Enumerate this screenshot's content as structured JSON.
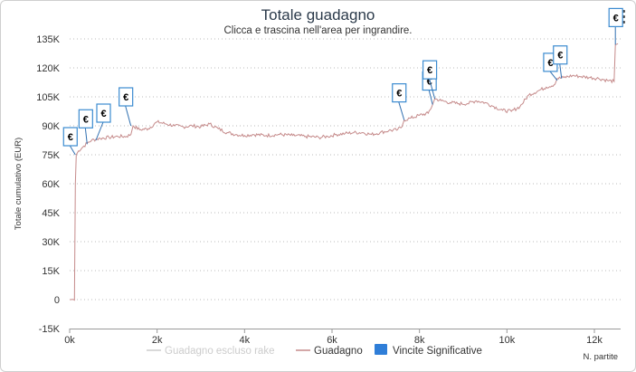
{
  "header": {
    "title": "Totale guadagno",
    "subtitle": "Clicca e trascina nell'area per ingrandire.",
    "menu_icon": "hamburger-menu-icon"
  },
  "colors": {
    "guadagno": "#c58a8a",
    "escluso_rake": "#cccccc",
    "vincite": "#2f7ed8",
    "grid": "#bbbbbb"
  },
  "chart_data": {
    "type": "line",
    "title": "Totale guadagno",
    "subtitle": "Clicca e trascina nell'area per ingrandire.",
    "xlabel": "N. partite",
    "ylabel": "Totale cumulativo (EUR)",
    "xlim": [
      0,
      12600
    ],
    "ylim": [
      -15000,
      135000
    ],
    "x_ticks": [
      0,
      2000,
      4000,
      6000,
      8000,
      10000,
      12000
    ],
    "x_tick_labels": [
      "0k",
      "2k",
      "4k",
      "6k",
      "8k",
      "10k",
      "12k"
    ],
    "y_ticks": [
      -15000,
      0,
      15000,
      30000,
      45000,
      60000,
      75000,
      90000,
      105000,
      120000,
      135000
    ],
    "y_tick_labels": [
      "-15K",
      "0",
      "15K",
      "30K",
      "45K",
      "60K",
      "75K",
      "90K",
      "105K",
      "120K",
      "135K"
    ],
    "grid": "horizontal dotted",
    "legend_position": "bottom-center",
    "legend": [
      "Guadagno escluso rake",
      "Guadagno",
      "Vincite Significative"
    ],
    "series": [
      {
        "name": "Guadagno",
        "points": [
          [
            0,
            0
          ],
          [
            90,
            0
          ],
          [
            110,
            -300
          ],
          [
            130,
            60000
          ],
          [
            150,
            75000
          ],
          [
            200,
            77000
          ],
          [
            300,
            79000
          ],
          [
            400,
            81000
          ],
          [
            500,
            82500
          ],
          [
            600,
            83000
          ],
          [
            700,
            83500
          ],
          [
            900,
            84000
          ],
          [
            1100,
            84500
          ],
          [
            1300,
            84500
          ],
          [
            1400,
            85500
          ],
          [
            1450,
            90000
          ],
          [
            1600,
            88000
          ],
          [
            1800,
            88500
          ],
          [
            2000,
            92000
          ],
          [
            2200,
            91000
          ],
          [
            2400,
            90000
          ],
          [
            2600,
            89500
          ],
          [
            2800,
            90000
          ],
          [
            3000,
            89500
          ],
          [
            3200,
            91000
          ],
          [
            3400,
            88500
          ],
          [
            3600,
            86500
          ],
          [
            3800,
            85500
          ],
          [
            4000,
            85000
          ],
          [
            4200,
            85500
          ],
          [
            4500,
            85000
          ],
          [
            4800,
            85500
          ],
          [
            5100,
            85000
          ],
          [
            5400,
            84500
          ],
          [
            5700,
            84000
          ],
          [
            5900,
            84500
          ],
          [
            6100,
            85500
          ],
          [
            6300,
            86000
          ],
          [
            6500,
            86500
          ],
          [
            6700,
            86500
          ],
          [
            6900,
            85500
          ],
          [
            7100,
            86500
          ],
          [
            7300,
            87500
          ],
          [
            7500,
            88000
          ],
          [
            7600,
            89500
          ],
          [
            7650,
            93000
          ],
          [
            7800,
            94000
          ],
          [
            8000,
            95500
          ],
          [
            8200,
            96500
          ],
          [
            8300,
            101000
          ],
          [
            8350,
            104000
          ],
          [
            8500,
            103000
          ],
          [
            8700,
            102000
          ],
          [
            8900,
            101500
          ],
          [
            9100,
            101500
          ],
          [
            9300,
            103000
          ],
          [
            9500,
            102000
          ],
          [
            9700,
            100000
          ],
          [
            9900,
            98000
          ],
          [
            10100,
            97500
          ],
          [
            10300,
            100000
          ],
          [
            10500,
            106000
          ],
          [
            10700,
            108000
          ],
          [
            10900,
            110000
          ],
          [
            11100,
            111500
          ],
          [
            11150,
            114500
          ],
          [
            11300,
            115000
          ],
          [
            11500,
            116000
          ],
          [
            11700,
            115500
          ],
          [
            11900,
            115000
          ],
          [
            12100,
            114500
          ],
          [
            12300,
            113500
          ],
          [
            12450,
            113000
          ],
          [
            12480,
            132000
          ],
          [
            12540,
            132500
          ]
        ]
      }
    ],
    "vincite_significative": [
      {
        "x": 130,
        "y": 75000,
        "label": "€"
      },
      {
        "x": 400,
        "y": 80500,
        "label": "€"
      },
      {
        "x": 600,
        "y": 82500,
        "label": "€"
      },
      {
        "x": 1400,
        "y": 90000,
        "label": "€"
      },
      {
        "x": 7650,
        "y": 93000,
        "label": "€"
      },
      {
        "x": 8300,
        "y": 101000,
        "label": "€"
      },
      {
        "x": 8350,
        "y": 104000,
        "label": "€"
      },
      {
        "x": 11150,
        "y": 113500,
        "label": "€"
      },
      {
        "x": 11250,
        "y": 114500,
        "label": "€"
      },
      {
        "x": 12480,
        "y": 132000,
        "label": "€"
      }
    ]
  }
}
